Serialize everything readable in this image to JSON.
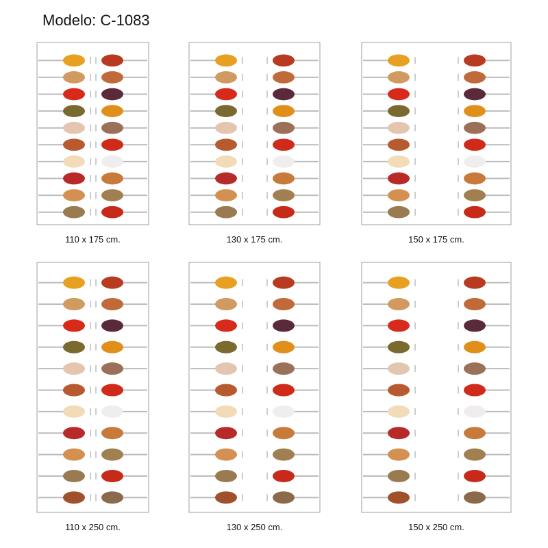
{
  "header": {
    "title": "Modelo: C-1083"
  },
  "panels": [
    {
      "label": "110 x 175 cm."
    },
    {
      "label": "130 x 175 cm."
    },
    {
      "label": "150 x 175 cm."
    },
    {
      "label": "110 x 250 cm."
    },
    {
      "label": "130 x 250 cm."
    },
    {
      "label": "150 x 250 cm."
    }
  ]
}
